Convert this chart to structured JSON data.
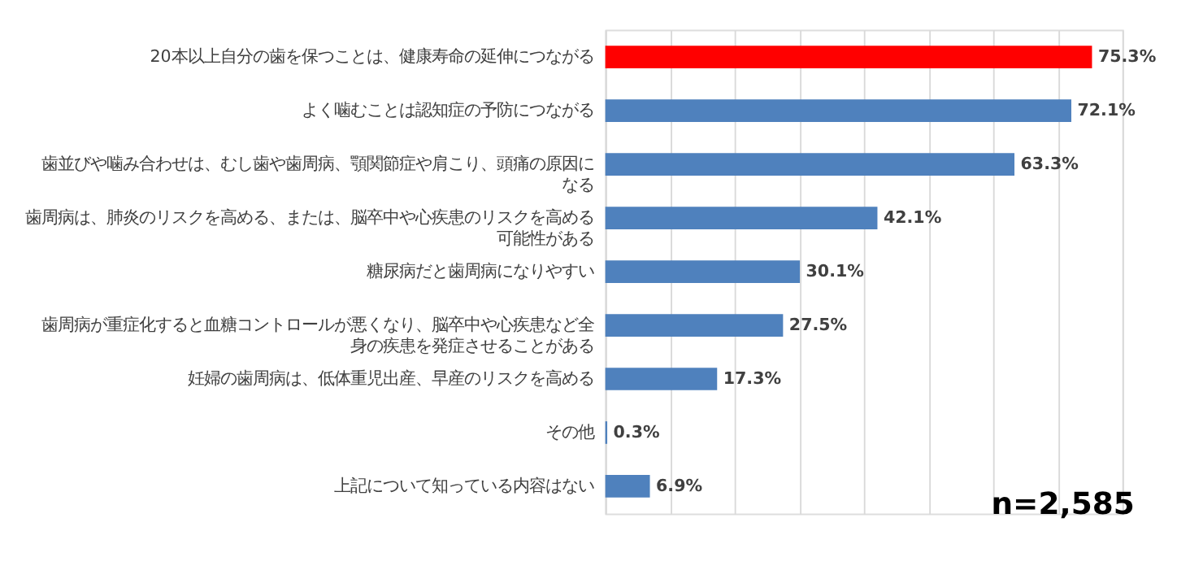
{
  "chart_data": {
    "type": "bar",
    "orientation": "horizontal",
    "categories": [
      "20本以上自分の歯を保つことは、健康寿命の延伸につながる",
      "よく噛むことは認知症の予防につながる",
      "歯並びや噛み合わせは、むし歯や歯周病、顎関節症や肩こり、頭痛の原因になる",
      "歯周病は、肺炎のリスクを高める、または、脳卒中や心疾患のリスクを高める可能性がある",
      "糖尿病だと歯周病になりやすい",
      "歯周病が重症化すると血糖コントロールが悪くなり、脳卒中や心疾患など全身の疾患を発症させることがある",
      "妊婦の歯周病は、低体重児出産、早産のリスクを高める",
      "その他",
      "上記について知っている内容はない"
    ],
    "values": [
      75.3,
      72.1,
      63.3,
      42.1,
      30.1,
      27.5,
      17.3,
      0.3,
      6.9
    ],
    "colors": [
      "#ff0000",
      "#4f81bd",
      "#4f81bd",
      "#4f81bd",
      "#4f81bd",
      "#4f81bd",
      "#4f81bd",
      "#4f81bd",
      "#4f81bd"
    ],
    "value_labels": [
      "75.3%",
      "72.1%",
      "63.3%",
      "42.1%",
      "30.1%",
      "27.5%",
      "17.3%",
      "0.3%",
      "6.9%"
    ],
    "xlim": [
      0,
      80
    ],
    "xticks": [
      {
        "value": 0,
        "label": null
      },
      {
        "value": 10,
        "label": null
      },
      {
        "value": 20,
        "label": null
      },
      {
        "value": 30,
        "label": null
      },
      {
        "value": 40,
        "label": null
      },
      {
        "value": 50,
        "label": null
      },
      {
        "value": 60,
        "label": null
      },
      {
        "value": 70,
        "label": null
      },
      {
        "value": 80,
        "label": null
      }
    ],
    "tick_labels": "y",
    "grid": "x",
    "annotations": [
      "n=2,585"
    ]
  }
}
